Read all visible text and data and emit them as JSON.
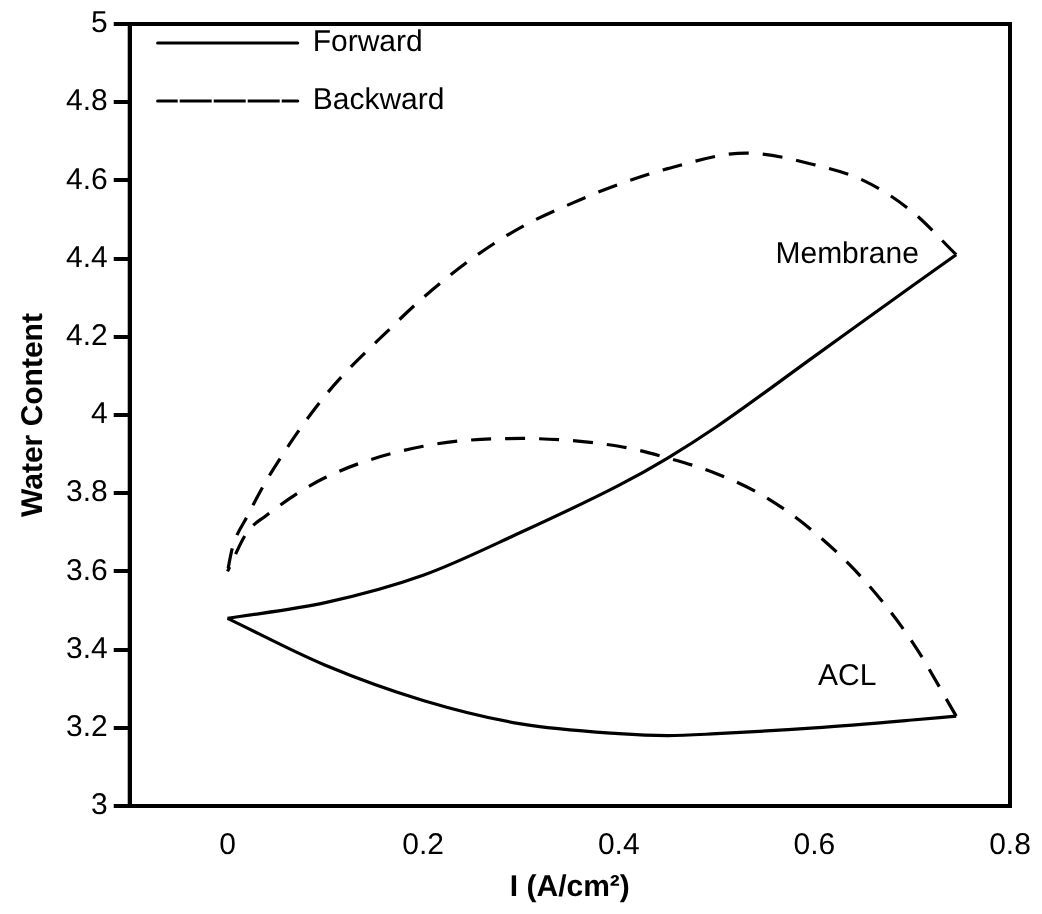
{
  "chart_data": {
    "type": "line",
    "xlabel": "I (A/cm²)",
    "ylabel": "Water Content",
    "xlim": [
      -0.1,
      0.8
    ],
    "xticks": [
      0,
      0.2,
      0.4,
      0.6,
      0.8
    ],
    "ylim": [
      3,
      5
    ],
    "yticks": [
      3,
      3.2,
      3.4,
      3.6,
      3.8,
      4,
      4.2,
      4.4,
      4.6,
      4.8,
      5
    ],
    "grid": false,
    "legend": "top left",
    "marker": "none",
    "series": [
      {
        "name": "Forward",
        "color": "#000000",
        "line_style": "solid",
        "x": [
          0,
          0.1,
          0.2,
          0.3,
          0.4,
          0.45,
          0.5,
          0.6,
          0.7,
          0.745
        ],
        "values": [
          3.48,
          3.52,
          3.59,
          3.7,
          3.82,
          3.89,
          3.97,
          4.15,
          4.33,
          4.41
        ]
      },
      {
        "name": "Backward",
        "color": "#000000",
        "line_style": "dashed",
        "x": [
          0.745,
          0.7,
          0.65,
          0.6,
          0.53,
          0.45,
          0.4,
          0.36,
          0.3,
          0.25,
          0.2,
          0.17,
          0.1,
          0.044,
          0.02,
          0.005,
          0
        ],
        "values": [
          4.41,
          4.52,
          4.6,
          4.64,
          4.67,
          4.63,
          4.59,
          4.55,
          4.48,
          4.4,
          4.3,
          4.23,
          4.05,
          3.85,
          3.74,
          3.66,
          3.6
        ]
      },
      {
        "color": "#000000",
        "line_style": "solid",
        "x": [
          0,
          0.1,
          0.2,
          0.3,
          0.4,
          0.45,
          0.5,
          0.6,
          0.7,
          0.745
        ],
        "values": [
          3.48,
          3.36,
          3.27,
          3.21,
          3.185,
          3.18,
          3.185,
          3.2,
          3.22,
          3.23
        ]
      },
      {
        "color": "#000000",
        "line_style": "dashed",
        "x": [
          0.745,
          0.7,
          0.65,
          0.6,
          0.55,
          0.5,
          0.45,
          0.4,
          0.3,
          0.2,
          0.1,
          0.038,
          0.02,
          0
        ],
        "values": [
          3.23,
          3.42,
          3.58,
          3.7,
          3.79,
          3.85,
          3.89,
          3.92,
          3.94,
          3.92,
          3.84,
          3.74,
          3.7,
          3.6
        ]
      }
    ],
    "annotations": [
      "Membrane",
      "ACL"
    ]
  }
}
